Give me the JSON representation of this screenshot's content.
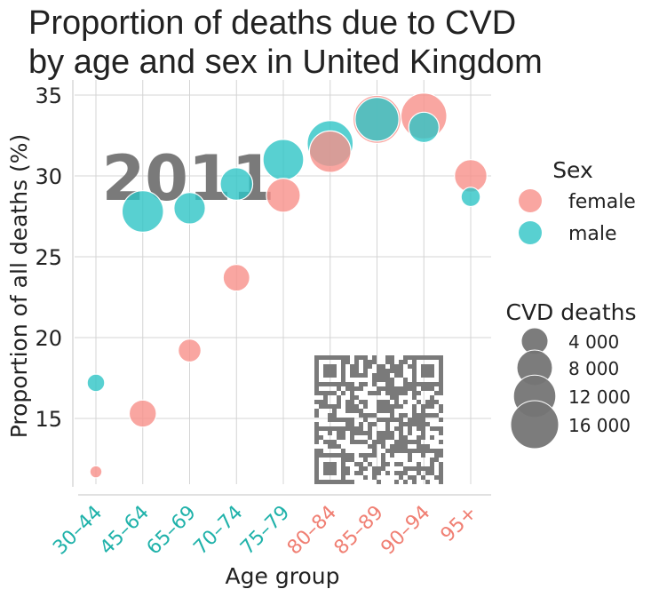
{
  "chart_data": {
    "type": "scatter",
    "title_lines": [
      "Proportion of deaths due to CVD",
      "by age and sex in United Kingdom"
    ],
    "watermark_year": "2011",
    "xlabel": "Age group",
    "ylabel": "Proportion of all deaths (%)",
    "categories": [
      "30–44",
      "45–64",
      "65–69",
      "70–74",
      "75–79",
      "80–84",
      "85–89",
      "90–94",
      "95+"
    ],
    "category_colors": [
      "#20b2aa",
      "#20b2aa",
      "#20b2aa",
      "#20b2aa",
      "#20b2aa",
      "#f07f73",
      "#f07f73",
      "#f07f73",
      "#f07f73"
    ],
    "ylim": [
      10.5,
      36
    ],
    "yticks": [
      15,
      20,
      25,
      30,
      35
    ],
    "grid": true,
    "series": [
      {
        "name": "female",
        "color": "#f8908a",
        "points": [
          {
            "x": "30–44",
            "y": 11.7,
            "deaths": 400
          },
          {
            "x": "45–64",
            "y": 15.3,
            "deaths": 4200
          },
          {
            "x": "65–69",
            "y": 19.2,
            "deaths": 2700
          },
          {
            "x": "70–74",
            "y": 23.7,
            "deaths": 4000
          },
          {
            "x": "75–79",
            "y": 28.8,
            "deaths": 7200
          },
          {
            "x": "80–84",
            "y": 31.5,
            "deaths": 11500
          },
          {
            "x": "85–89",
            "y": 33.5,
            "deaths": 16000
          },
          {
            "x": "90–94",
            "y": 33.7,
            "deaths": 14500
          },
          {
            "x": "95+",
            "y": 30.0,
            "deaths": 6500
          }
        ]
      },
      {
        "name": "male",
        "color": "#2ec4c6",
        "points": [
          {
            "x": "30–44",
            "y": 17.2,
            "deaths": 1300
          },
          {
            "x": "45–64",
            "y": 27.8,
            "deaths": 11500
          },
          {
            "x": "65–69",
            "y": 28.0,
            "deaths": 6000
          },
          {
            "x": "70–74",
            "y": 29.5,
            "deaths": 6500
          },
          {
            "x": "75–79",
            "y": 31.0,
            "deaths": 11000
          },
          {
            "x": "80–84",
            "y": 32.0,
            "deaths": 14500
          },
          {
            "x": "85–89",
            "y": 33.5,
            "deaths": 13000
          },
          {
            "x": "90–94",
            "y": 33.0,
            "deaths": 5500
          },
          {
            "x": "95+",
            "y": 28.7,
            "deaths": 1700
          }
        ]
      }
    ],
    "legend_sex": {
      "title": "Sex",
      "placement": "right"
    },
    "legend_size": {
      "title": "CVD deaths",
      "placement": "right",
      "entries": [
        {
          "label": "4 000",
          "value": 4000
        },
        {
          "label": "8 000",
          "value": 8000
        },
        {
          "label": "12 000",
          "value": 12000
        },
        {
          "label": "16 000",
          "value": 16000
        }
      ],
      "color": "#757575"
    }
  }
}
